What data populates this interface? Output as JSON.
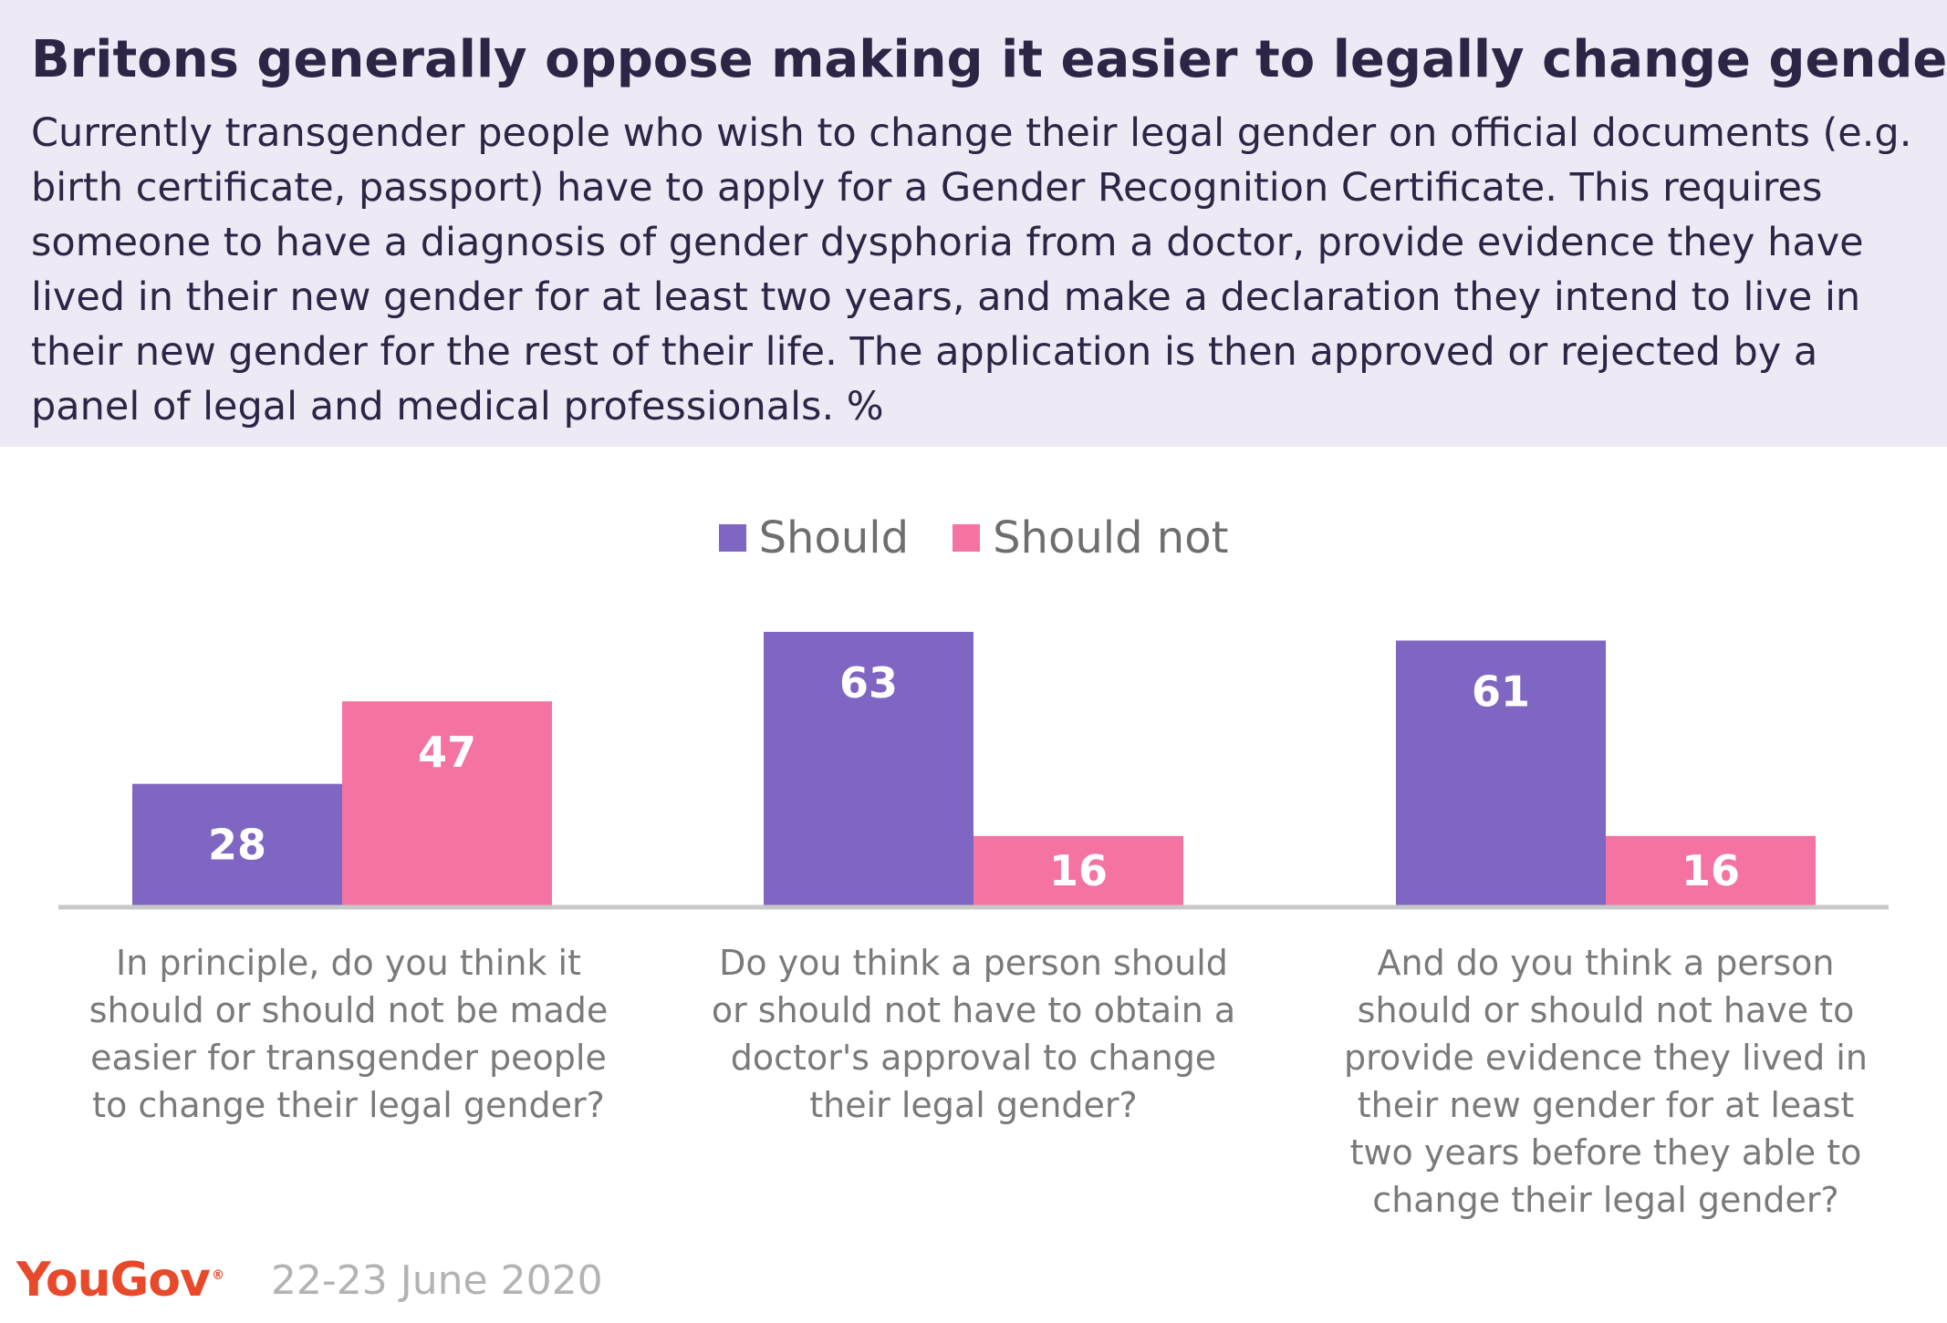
{
  "title": "Britons generally oppose making it easier to legally change gender",
  "subtitle": "Currently transgender people who wish to change their legal gender on official documents (e.g. birth certificate, passport) have to apply for a Gender Recognition Certificate. This requires someone to have a diagnosis of gender dysphoria from a doctor, provide evidence they have lived in their new gender for at least two years, and make a declaration they intend to live in their new gender for the rest of their life. The application is then approved or rejected by a panel of legal and medical professionals. %",
  "source": {
    "logo": "YouGov",
    "date": "22-23 June 2020"
  },
  "colors": {
    "should": "#7f66c2",
    "should_not": "#f473a3",
    "header_bg": "#eeeaf5",
    "title": "#2d2545",
    "baseline": "#c8c8c8",
    "logo": "#e8492b"
  },
  "chart_data": {
    "type": "bar",
    "categories": [
      "In principle, do you think it should or should not be made easier for transgender people to change their legal gender?",
      "Do you think a person should or should not have to obtain a doctor's approval to change their legal gender?",
      "And do you think a person should or should not have to provide evidence they lived in their new gender for at least two years before they able to change their legal gender?"
    ],
    "series": [
      {
        "name": "Should",
        "values": [
          28,
          63,
          61
        ],
        "color": "#7f66c2"
      },
      {
        "name": "Should not",
        "values": [
          47,
          16,
          16
        ],
        "color": "#f473a3"
      }
    ],
    "ylim": [
      0,
      63
    ],
    "legend_position": "top-center",
    "grid": false,
    "data_labels": true
  }
}
